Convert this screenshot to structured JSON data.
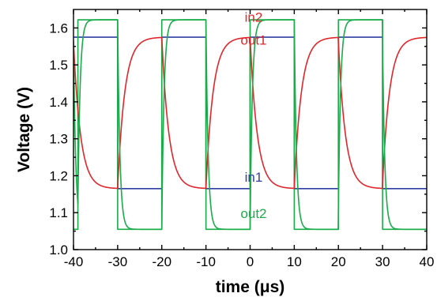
{
  "chart_data": {
    "type": "line",
    "xlabel": "time (μs)",
    "ylabel": "Voltage (V)",
    "xlim": [
      -40,
      40
    ],
    "ylim": [
      1.0,
      1.65
    ],
    "xticks": [
      -40,
      -30,
      -20,
      -10,
      0,
      10,
      20,
      30,
      40
    ],
    "xtick_labels": [
      "-40",
      "-30",
      "-20",
      "-10",
      "0",
      "10",
      "20",
      "30",
      "40"
    ],
    "yticks": [
      1.0,
      1.1,
      1.2,
      1.3,
      1.4,
      1.5,
      1.6
    ],
    "ytick_labels": [
      "1.0",
      "1.1",
      "1.2",
      "1.3",
      "1.4",
      "1.5",
      "1.6"
    ],
    "grid": false,
    "legend": "inline labels",
    "period_us": 20,
    "series": [
      {
        "name": "in1",
        "color": "#2e3fa3",
        "shape": "square",
        "high": 1.575,
        "low": 1.165,
        "high_intervals": [
          [
            -40,
            -30
          ],
          [
            -20,
            -10
          ],
          [
            0,
            10
          ],
          [
            20,
            30
          ]
        ]
      },
      {
        "name": "in2",
        "color": "#1aac4a",
        "shape": "square",
        "high": 1.622,
        "low": 1.055,
        "high_intervals": [
          [
            -39,
            -30
          ],
          [
            -20,
            -10
          ],
          [
            0,
            10
          ],
          [
            20,
            30
          ]
        ]
      },
      {
        "name": "out1",
        "color": "#e0262b",
        "shape": "rc",
        "high": 1.575,
        "low": 1.165,
        "tau_us": 1.6,
        "high_intervals": [
          [
            -30,
            -20
          ],
          [
            -10,
            0
          ],
          [
            10,
            20
          ],
          [
            30,
            40
          ]
        ]
      },
      {
        "name": "out2",
        "color": "#1aac4a",
        "shape": "rc",
        "high": 1.622,
        "low": 1.055,
        "tau_us": 0.5,
        "high_intervals": [
          [
            -39,
            -30
          ],
          [
            -20,
            -10
          ],
          [
            0,
            10
          ],
          [
            20,
            30
          ]
        ]
      }
    ],
    "annotations": [
      {
        "text": "in2",
        "color": "#e0262b",
        "x": 0.8,
        "y": 1.617
      },
      {
        "text": "out1",
        "color": "#e0262b",
        "x": 0.8,
        "y": 1.555
      },
      {
        "text": "in1",
        "color": "#2e3fa3",
        "x": 0.8,
        "y": 1.184
      },
      {
        "text": "out2",
        "color": "#1aac4a",
        "x": 0.8,
        "y": 1.085
      }
    ]
  }
}
